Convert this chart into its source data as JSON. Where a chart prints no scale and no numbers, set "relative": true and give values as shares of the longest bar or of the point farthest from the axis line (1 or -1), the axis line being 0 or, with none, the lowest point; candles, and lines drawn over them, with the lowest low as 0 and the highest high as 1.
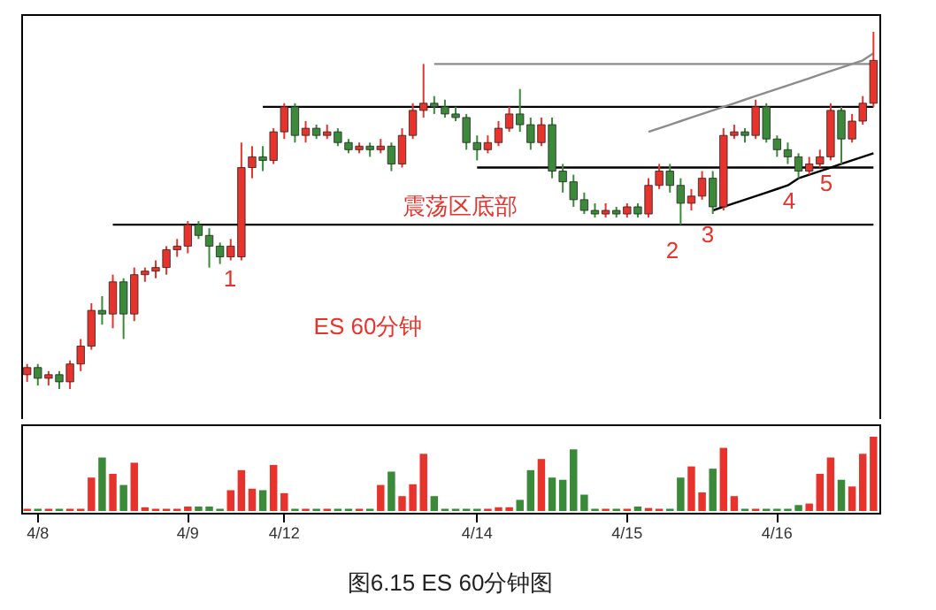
{
  "chart_data": [
    {
      "type": "candlestick",
      "relative": true,
      "tick_labels": false,
      "categories": [
        null,
        null,
        null,
        null,
        null,
        null,
        null,
        null,
        null,
        null,
        null,
        null,
        null,
        null,
        null,
        null,
        null,
        null,
        null,
        null,
        null,
        null,
        null,
        null,
        null,
        null,
        null,
        null,
        null,
        null,
        null,
        null,
        null,
        null,
        null,
        null,
        null,
        null,
        null,
        null,
        null,
        null,
        null,
        null,
        null,
        null,
        null,
        null,
        null,
        null,
        null,
        null,
        null,
        null,
        null,
        null,
        null,
        null,
        null,
        null,
        null,
        null,
        null,
        null,
        null,
        null,
        null,
        null,
        null,
        null,
        null,
        null,
        null,
        null,
        null,
        null,
        null,
        null,
        null,
        null
      ],
      "ohlc": [
        [
          0.04,
          0.07,
          0.02,
          0.06
        ],
        [
          0.06,
          0.07,
          0.01,
          0.03
        ],
        [
          0.03,
          0.05,
          0.01,
          0.04
        ],
        [
          0.04,
          0.05,
          0,
          0.02
        ],
        [
          0.02,
          0.08,
          0,
          0.07
        ],
        [
          0.07,
          0.14,
          0.05,
          0.12
        ],
        [
          0.12,
          0.24,
          0.11,
          0.22
        ],
        [
          0.22,
          0.26,
          0.18,
          0.21
        ],
        [
          0.21,
          0.32,
          0.17,
          0.3
        ],
        [
          0.3,
          0.31,
          0.14,
          0.21
        ],
        [
          0.21,
          0.34,
          0.19,
          0.32
        ],
        [
          0.32,
          0.34,
          0.3,
          0.33
        ],
        [
          0.33,
          0.36,
          0.31,
          0.34
        ],
        [
          0.34,
          0.4,
          0.32,
          0.39
        ],
        [
          0.39,
          0.42,
          0.37,
          0.4
        ],
        [
          0.4,
          0.47,
          0.38,
          0.46
        ],
        [
          0.46,
          0.47,
          0.42,
          0.43
        ],
        [
          0.43,
          0.45,
          0.34,
          0.4
        ],
        [
          0.4,
          0.41,
          0.35,
          0.37
        ],
        [
          0.37,
          0.42,
          0.36,
          0.4
        ],
        [
          0.37,
          0.69,
          0.36,
          0.62
        ],
        [
          0.62,
          0.68,
          0.59,
          0.65
        ],
        [
          0.65,
          0.68,
          0.61,
          0.64
        ],
        [
          0.64,
          0.73,
          0.63,
          0.72
        ],
        [
          0.72,
          0.8,
          0.7,
          0.79
        ],
        [
          0.79,
          0.8,
          0.69,
          0.71
        ],
        [
          0.71,
          0.75,
          0.69,
          0.73
        ],
        [
          0.73,
          0.74,
          0.7,
          0.71
        ],
        [
          0.71,
          0.74,
          0.7,
          0.72
        ],
        [
          0.72,
          0.73,
          0.68,
          0.69
        ],
        [
          0.69,
          0.7,
          0.66,
          0.67
        ],
        [
          0.67,
          0.69,
          0.66,
          0.68
        ],
        [
          0.68,
          0.69,
          0.65,
          0.67
        ],
        [
          0.67,
          0.7,
          0.66,
          0.68
        ],
        [
          0.68,
          0.69,
          0.61,
          0.63
        ],
        [
          0.63,
          0.73,
          0.62,
          0.71
        ],
        [
          0.71,
          0.8,
          0.7,
          0.78
        ],
        [
          0.78,
          0.91,
          0.76,
          0.8
        ],
        [
          0.8,
          0.82,
          0.77,
          0.79
        ],
        [
          0.79,
          0.81,
          0.76,
          0.77
        ],
        [
          0.77,
          0.79,
          0.75,
          0.76
        ],
        [
          0.76,
          0.77,
          0.67,
          0.69
        ],
        [
          0.69,
          0.71,
          0.64,
          0.67
        ],
        [
          0.67,
          0.71,
          0.66,
          0.69
        ],
        [
          0.69,
          0.75,
          0.68,
          0.73
        ],
        [
          0.73,
          0.79,
          0.72,
          0.77
        ],
        [
          0.77,
          0.84,
          0.72,
          0.74
        ],
        [
          0.74,
          0.76,
          0.67,
          0.69
        ],
        [
          0.69,
          0.76,
          0.68,
          0.74
        ],
        [
          0.74,
          0.76,
          0.59,
          0.61
        ],
        [
          0.61,
          0.63,
          0.55,
          0.58
        ],
        [
          0.58,
          0.6,
          0.51,
          0.53
        ],
        [
          0.53,
          0.55,
          0.49,
          0.5
        ],
        [
          0.5,
          0.52,
          0.48,
          0.49
        ],
        [
          0.49,
          0.52,
          0.48,
          0.5
        ],
        [
          0.5,
          0.51,
          0.48,
          0.49
        ],
        [
          0.49,
          0.52,
          0.48,
          0.51
        ],
        [
          0.51,
          0.52,
          0.48,
          0.49
        ],
        [
          0.49,
          0.59,
          0.48,
          0.57
        ],
        [
          0.57,
          0.63,
          0.56,
          0.61
        ],
        [
          0.61,
          0.63,
          0.55,
          0.57
        ],
        [
          0.57,
          0.59,
          0.46,
          0.52
        ],
        [
          0.52,
          0.56,
          0.5,
          0.54
        ],
        [
          0.54,
          0.61,
          0.53,
          0.59
        ],
        [
          0.59,
          0.61,
          0.49,
          0.51
        ],
        [
          0.51,
          0.73,
          0.5,
          0.71
        ],
        [
          0.71,
          0.74,
          0.7,
          0.72
        ],
        [
          0.72,
          0.73,
          0.69,
          0.71
        ],
        [
          0.71,
          0.81,
          0.7,
          0.79
        ],
        [
          0.79,
          0.8,
          0.69,
          0.7
        ],
        [
          0.7,
          0.71,
          0.65,
          0.67
        ],
        [
          0.67,
          0.69,
          0.63,
          0.65
        ],
        [
          0.65,
          0.66,
          0.59,
          0.61
        ],
        [
          0.61,
          0.65,
          0.6,
          0.63
        ],
        [
          0.63,
          0.67,
          0.62,
          0.65
        ],
        [
          0.65,
          0.8,
          0.64,
          0.78
        ],
        [
          0.78,
          0.79,
          0.63,
          0.7
        ],
        [
          0.7,
          0.77,
          0.69,
          0.75
        ],
        [
          0.75,
          0.82,
          0.74,
          0.8
        ],
        [
          0.8,
          1,
          0.79,
          0.92
        ]
      ],
      "colors": [
        "#e8332c",
        "#3a8a3a",
        "#e8332c",
        "#3a8a3a",
        "#e8332c",
        "#e8332c",
        "#e8332c",
        "#3a8a3a",
        "#e8332c",
        "#3a8a3a",
        "#e8332c",
        "#e8332c",
        "#e8332c",
        "#e8332c",
        "#e8332c",
        "#e8332c",
        "#3a8a3a",
        "#3a8a3a",
        "#3a8a3a",
        "#e8332c",
        "#e8332c",
        "#e8332c",
        "#3a8a3a",
        "#e8332c",
        "#e8332c",
        "#3a8a3a",
        "#e8332c",
        "#3a8a3a",
        "#e8332c",
        "#3a8a3a",
        "#3a8a3a",
        "#e8332c",
        "#3a8a3a",
        "#e8332c",
        "#3a8a3a",
        "#e8332c",
        "#e8332c",
        "#e8332c",
        "#3a8a3a",
        "#3a8a3a",
        "#3a8a3a",
        "#3a8a3a",
        "#3a8a3a",
        "#e8332c",
        "#e8332c",
        "#e8332c",
        "#3a8a3a",
        "#3a8a3a",
        "#e8332c",
        "#3a8a3a",
        "#3a8a3a",
        "#3a8a3a",
        "#3a8a3a",
        "#3a8a3a",
        "#e8332c",
        "#3a8a3a",
        "#e8332c",
        "#3a8a3a",
        "#e8332c",
        "#e8332c",
        "#3a8a3a",
        "#3a8a3a",
        "#e8332c",
        "#e8332c",
        "#3a8a3a",
        "#e8332c",
        "#e8332c",
        "#3a8a3a",
        "#e8332c",
        "#3a8a3a",
        "#3a8a3a",
        "#3a8a3a",
        "#3a8a3a",
        "#e8332c",
        "#e8332c",
        "#e8332c",
        "#3a8a3a",
        "#e8332c",
        "#e8332c",
        "#e8332c"
      ],
      "series": [
        {
          "type": "line",
          "color": "#000000",
          "line_style": "solid",
          "values": [
            null,
            null,
            null,
            null,
            null,
            null,
            null,
            null,
            0.46,
            0.46,
            0.46,
            0.46,
            0.46,
            0.46,
            0.46,
            0.46,
            0.46,
            0.46,
            0.46,
            0.46,
            0.46,
            0.46,
            0.46,
            0.46,
            0.46,
            0.46,
            0.46,
            0.46,
            0.46,
            0.46,
            0.46,
            0.46,
            0.46,
            0.46,
            0.46,
            0.46,
            0.46,
            0.46,
            0.46,
            0.46,
            0.46,
            0.46,
            0.46,
            0.46,
            0.46,
            0.46,
            0.46,
            0.46,
            0.46,
            0.46,
            0.46,
            0.46,
            0.46,
            0.46,
            0.46,
            0.46,
            0.46,
            0.46,
            0.46,
            0.46,
            0.46,
            0.46,
            0.46,
            0.46,
            0.46,
            0.46,
            0.46,
            0.46,
            0.46,
            0.46,
            0.46,
            0.46,
            0.46,
            0.46,
            0.46,
            0.46,
            0.46,
            0.46,
            0.46,
            0.46
          ]
        },
        {
          "type": "line",
          "color": "#000000",
          "line_style": "solid",
          "values": [
            null,
            null,
            null,
            null,
            null,
            null,
            null,
            null,
            null,
            null,
            null,
            null,
            null,
            null,
            null,
            null,
            null,
            null,
            null,
            null,
            null,
            null,
            0.79,
            0.79,
            0.79,
            0.79,
            0.79,
            0.79,
            0.79,
            0.79,
            0.79,
            0.79,
            0.79,
            0.79,
            0.79,
            0.79,
            0.79,
            0.79,
            0.79,
            0.79,
            0.79,
            0.79,
            0.79,
            0.79,
            0.79,
            0.79,
            0.79,
            0.79,
            0.79,
            0.79,
            0.79,
            0.79,
            0.79,
            0.79,
            0.79,
            0.79,
            0.79,
            0.79,
            0.79,
            0.79,
            0.79,
            0.79,
            0.79,
            0.79,
            0.79,
            0.79,
            0.79,
            0.79,
            0.79,
            0.79,
            0.79,
            0.79,
            0.79,
            0.79,
            0.79,
            0.79,
            0.79,
            0.79,
            0.79,
            0.79
          ]
        },
        {
          "type": "line",
          "color": "#000000",
          "line_style": "solid",
          "values": [
            null,
            null,
            null,
            null,
            null,
            null,
            null,
            null,
            null,
            null,
            null,
            null,
            null,
            null,
            null,
            null,
            null,
            null,
            null,
            null,
            null,
            null,
            null,
            null,
            null,
            null,
            null,
            null,
            null,
            null,
            null,
            null,
            null,
            null,
            null,
            null,
            null,
            null,
            null,
            null,
            null,
            null,
            0.62,
            0.62,
            0.62,
            0.62,
            0.62,
            0.62,
            0.62,
            0.62,
            0.62,
            0.62,
            0.62,
            0.62,
            0.62,
            0.62,
            0.62,
            0.62,
            0.62,
            0.62,
            0.62,
            0.62,
            0.62,
            0.62,
            0.62,
            0.62,
            0.62,
            0.62,
            0.62,
            0.62,
            0.62,
            0.62,
            0.62,
            0.62,
            0.62,
            0.62,
            0.62,
            0.62,
            0.62,
            0.62
          ]
        },
        {
          "type": "line",
          "color": "#8c8c8c",
          "line_style": "solid",
          "values": [
            null,
            null,
            null,
            null,
            null,
            null,
            null,
            null,
            null,
            null,
            null,
            null,
            null,
            null,
            null,
            null,
            null,
            null,
            null,
            null,
            null,
            null,
            null,
            null,
            null,
            null,
            null,
            null,
            null,
            null,
            null,
            null,
            null,
            null,
            null,
            null,
            null,
            null,
            0.91,
            0.91,
            0.91,
            0.91,
            0.91,
            0.91,
            0.91,
            0.91,
            0.91,
            0.91,
            0.91,
            0.91,
            0.91,
            0.91,
            0.91,
            0.91,
            0.91,
            0.91,
            0.91,
            0.91,
            0.91,
            0.91,
            0.91,
            0.91,
            0.91,
            0.91,
            0.91,
            0.91,
            0.91,
            0.91,
            0.91,
            0.91,
            0.91,
            0.91,
            0.91,
            0.91,
            0.91,
            0.91,
            0.91,
            0.91,
            0.91,
            0.91
          ]
        },
        {
          "type": "line",
          "color": "#000000",
          "line_style": "solid",
          "values": [
            null,
            null,
            null,
            null,
            null,
            null,
            null,
            null,
            null,
            null,
            null,
            null,
            null,
            null,
            null,
            null,
            null,
            null,
            null,
            null,
            null,
            null,
            null,
            null,
            null,
            null,
            null,
            null,
            null,
            null,
            null,
            null,
            null,
            null,
            null,
            null,
            null,
            null,
            null,
            null,
            null,
            null,
            null,
            null,
            null,
            null,
            null,
            null,
            null,
            null,
            null,
            null,
            null,
            null,
            null,
            null,
            null,
            null,
            null,
            null,
            null,
            null,
            null,
            null,
            0.5,
            0.51,
            0.52,
            0.53,
            0.54,
            0.55,
            0.56,
            0.57,
            0.59,
            0.6,
            0.61,
            0.62,
            0.63,
            0.64,
            0.65,
            0.66
          ]
        },
        {
          "type": "line",
          "color": "#8c8c8c",
          "line_style": "solid",
          "values": [
            null,
            null,
            null,
            null,
            null,
            null,
            null,
            null,
            null,
            null,
            null,
            null,
            null,
            null,
            null,
            null,
            null,
            null,
            null,
            null,
            null,
            null,
            null,
            null,
            null,
            null,
            null,
            null,
            null,
            null,
            null,
            null,
            null,
            null,
            null,
            null,
            null,
            null,
            null,
            null,
            null,
            null,
            null,
            null,
            null,
            null,
            null,
            null,
            null,
            null,
            null,
            null,
            null,
            null,
            null,
            null,
            null,
            null,
            0.72,
            0.73,
            0.74,
            0.75,
            0.76,
            0.77,
            0.78,
            0.79,
            0.8,
            0.81,
            0.82,
            0.83,
            0.84,
            0.85,
            0.86,
            0.87,
            0.88,
            0.89,
            0.9,
            0.91,
            0.92,
            0.94
          ]
        }
      ],
      "annotations": [
        "1",
        "2",
        "3",
        "4",
        "5",
        "震荡区底部",
        "ES 60分钟"
      ]
    },
    {
      "type": "bar",
      "relative": true,
      "tick_labels": "x",
      "title": "图6.15 ES 60分钟图",
      "categories": [
        null,
        "4/8",
        null,
        null,
        null,
        null,
        null,
        null,
        null,
        null,
        null,
        null,
        null,
        null,
        null,
        "4/9",
        null,
        null,
        null,
        null,
        null,
        null,
        null,
        null,
        "4/12",
        null,
        null,
        null,
        null,
        null,
        null,
        null,
        null,
        null,
        null,
        null,
        null,
        null,
        null,
        null,
        null,
        null,
        "4/14",
        null,
        null,
        null,
        null,
        null,
        null,
        null,
        null,
        null,
        null,
        null,
        null,
        null,
        "4/15",
        null,
        null,
        null,
        null,
        null,
        null,
        null,
        null,
        null,
        null,
        null,
        null,
        null,
        "4/16",
        null,
        null,
        null,
        null,
        null,
        null,
        null,
        null,
        null
      ],
      "values": [
        0.03,
        0.03,
        0.03,
        0.03,
        0.03,
        0.03,
        0.45,
        0.72,
        0.5,
        0.35,
        0.65,
        0.05,
        0.03,
        0.03,
        0.03,
        0.06,
        0.06,
        0.06,
        0.03,
        0.28,
        0.55,
        0.3,
        0.28,
        0.62,
        0.24,
        0.03,
        0.03,
        0.03,
        0.03,
        0.03,
        0.03,
        0.03,
        0.03,
        0.35,
        0.53,
        0.2,
        0.36,
        0.77,
        0.2,
        0.03,
        0.03,
        0.03,
        0.03,
        0.03,
        0.05,
        0.05,
        0.15,
        0.55,
        0.7,
        0.45,
        0.42,
        0.83,
        0.22,
        0.03,
        0.03,
        0.03,
        0.03,
        0.06,
        0.04,
        0.03,
        0.03,
        0.45,
        0.6,
        0.25,
        0.57,
        0.85,
        0.2,
        0.03,
        0.03,
        0.03,
        0.03,
        0.03,
        0.08,
        0.1,
        0.5,
        0.72,
        0.42,
        0.33,
        0.77,
        1
      ],
      "colors": [
        "#e8332c",
        "#3a8a3a",
        "#e8332c",
        "#3a8a3a",
        "#e8332c",
        "#e8332c",
        "#e8332c",
        "#3a8a3a",
        "#e8332c",
        "#3a8a3a",
        "#e8332c",
        "#e8332c",
        "#e8332c",
        "#e8332c",
        "#e8332c",
        "#e8332c",
        "#3a8a3a",
        "#3a8a3a",
        "#3a8a3a",
        "#e8332c",
        "#e8332c",
        "#e8332c",
        "#3a8a3a",
        "#e8332c",
        "#e8332c",
        "#3a8a3a",
        "#e8332c",
        "#3a8a3a",
        "#e8332c",
        "#3a8a3a",
        "#3a8a3a",
        "#e8332c",
        "#3a8a3a",
        "#e8332c",
        "#3a8a3a",
        "#e8332c",
        "#e8332c",
        "#e8332c",
        "#3a8a3a",
        "#3a8a3a",
        "#3a8a3a",
        "#3a8a3a",
        "#3a8a3a",
        "#e8332c",
        "#e8332c",
        "#e8332c",
        "#3a8a3a",
        "#3a8a3a",
        "#e8332c",
        "#3a8a3a",
        "#3a8a3a",
        "#3a8a3a",
        "#3a8a3a",
        "#3a8a3a",
        "#e8332c",
        "#3a8a3a",
        "#e8332c",
        "#3a8a3a",
        "#e8332c",
        "#e8332c",
        "#3a8a3a",
        "#3a8a3a",
        "#e8332c",
        "#e8332c",
        "#3a8a3a",
        "#e8332c",
        "#e8332c",
        "#3a8a3a",
        "#e8332c",
        "#3a8a3a",
        "#3a8a3a",
        "#3a8a3a",
        "#3a8a3a",
        "#e8332c",
        "#e8332c",
        "#e8332c",
        "#3a8a3a",
        "#e8332c",
        "#e8332c",
        "#e8332c"
      ]
    }
  ]
}
